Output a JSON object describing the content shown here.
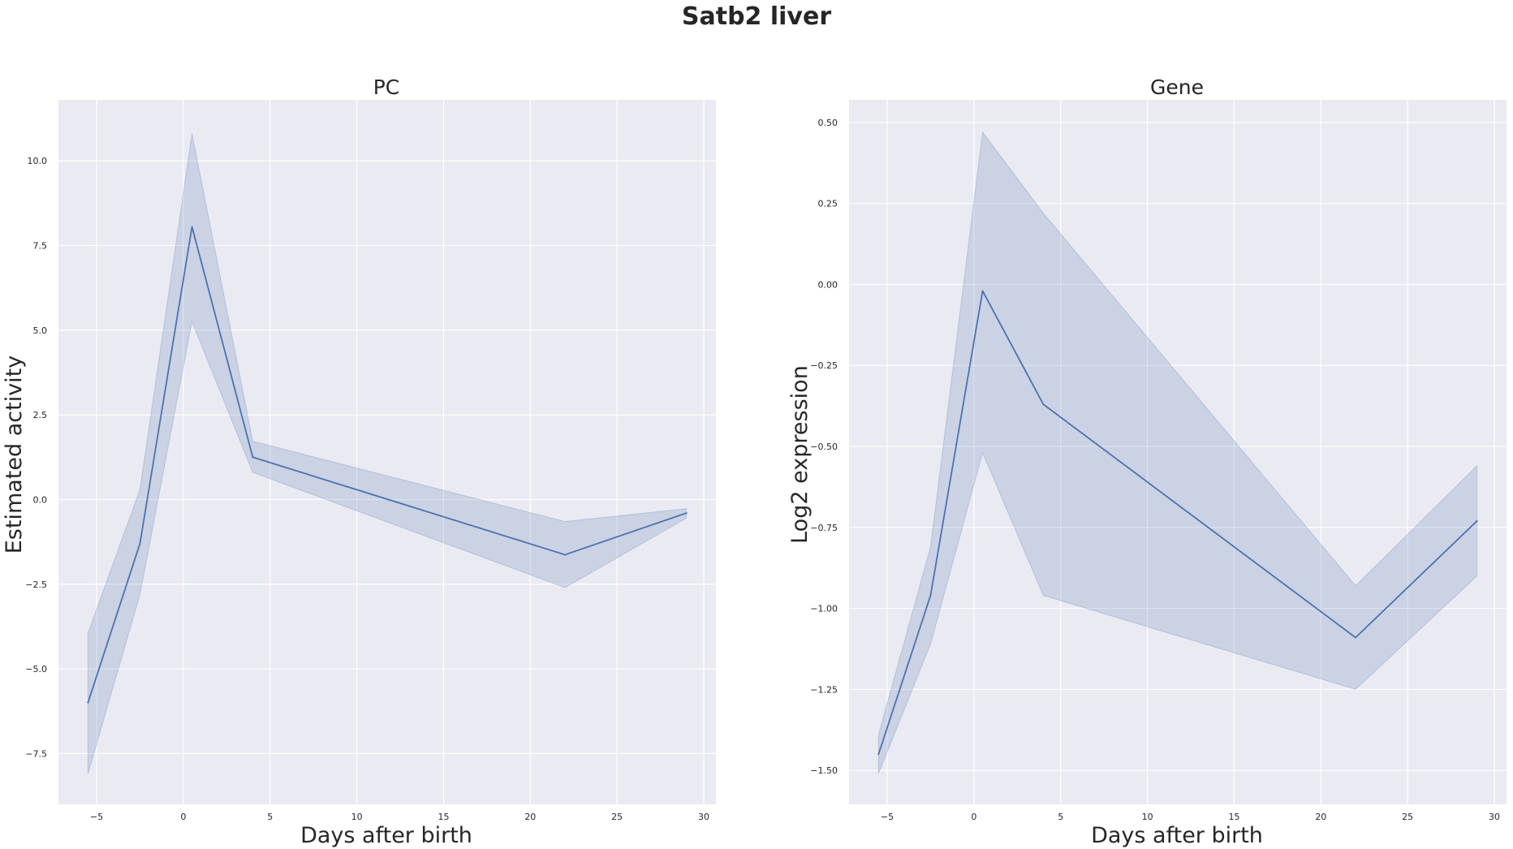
{
  "figure": {
    "title": "Satb2 liver"
  },
  "colors": {
    "background": "#eaeaf2",
    "grid": "#ffffff",
    "line": "#4c72b0",
    "band": "#4c72b0"
  },
  "chart_data": [
    {
      "type": "line",
      "title": "PC",
      "xlabel": "Days after birth",
      "ylabel": "Estimated activity",
      "xlim": [
        -7.2,
        30.7
      ],
      "ylim": [
        -9.0,
        11.8
      ],
      "xticks": [
        -5,
        0,
        5,
        10,
        15,
        20,
        25,
        30
      ],
      "xtick_labels": [
        "−5",
        "0",
        "5",
        "10",
        "15",
        "20",
        "25",
        "30"
      ],
      "yticks": [
        -7.5,
        -5.0,
        -2.5,
        0.0,
        2.5,
        5.0,
        7.5,
        10.0
      ],
      "ytick_labels": [
        "−7.5",
        "−5.0",
        "−2.5",
        "0.0",
        "2.5",
        "5.0",
        "7.5",
        "10.0"
      ],
      "grid": true,
      "legend": "none",
      "series": [
        {
          "x": [
            -5.5,
            -2.5,
            0.5,
            4,
            22,
            29
          ],
          "y": [
            -6.0,
            -1.3,
            8.05,
            1.25,
            -1.63,
            -0.4
          ],
          "lower": [
            -8.1,
            -2.8,
            5.25,
            0.8,
            -2.6,
            -0.55
          ],
          "upper": [
            -3.95,
            0.3,
            10.8,
            1.72,
            -0.65,
            -0.27
          ]
        }
      ]
    },
    {
      "type": "line",
      "title": "Gene",
      "xlabel": "Days after birth",
      "ylabel": "Log2 expression",
      "xlim": [
        -7.2,
        30.7
      ],
      "ylim": [
        -1.605,
        0.57
      ],
      "xticks": [
        -5,
        0,
        5,
        10,
        15,
        20,
        25,
        30
      ],
      "xtick_labels": [
        "−5",
        "0",
        "5",
        "10",
        "15",
        "20",
        "25",
        "30"
      ],
      "yticks": [
        -1.5,
        -1.25,
        -1.0,
        -0.75,
        -0.5,
        -0.25,
        0.0,
        0.25,
        0.5
      ],
      "ytick_labels": [
        "−1.50",
        "−1.25",
        "−1.00",
        "−0.75",
        "−0.50",
        "−0.25",
        "0.00",
        "0.25",
        "0.50"
      ],
      "grid": true,
      "legend": "none",
      "series": [
        {
          "x": [
            -5.5,
            -2.5,
            0.5,
            4,
            22,
            29
          ],
          "y": [
            -1.45,
            -0.96,
            -0.02,
            -0.37,
            -1.09,
            -0.73
          ],
          "lower": [
            -1.51,
            -1.11,
            -0.52,
            -0.96,
            -1.25,
            -0.9
          ],
          "upper": [
            -1.39,
            -0.81,
            0.47,
            0.22,
            -0.93,
            -0.56
          ]
        }
      ]
    }
  ]
}
